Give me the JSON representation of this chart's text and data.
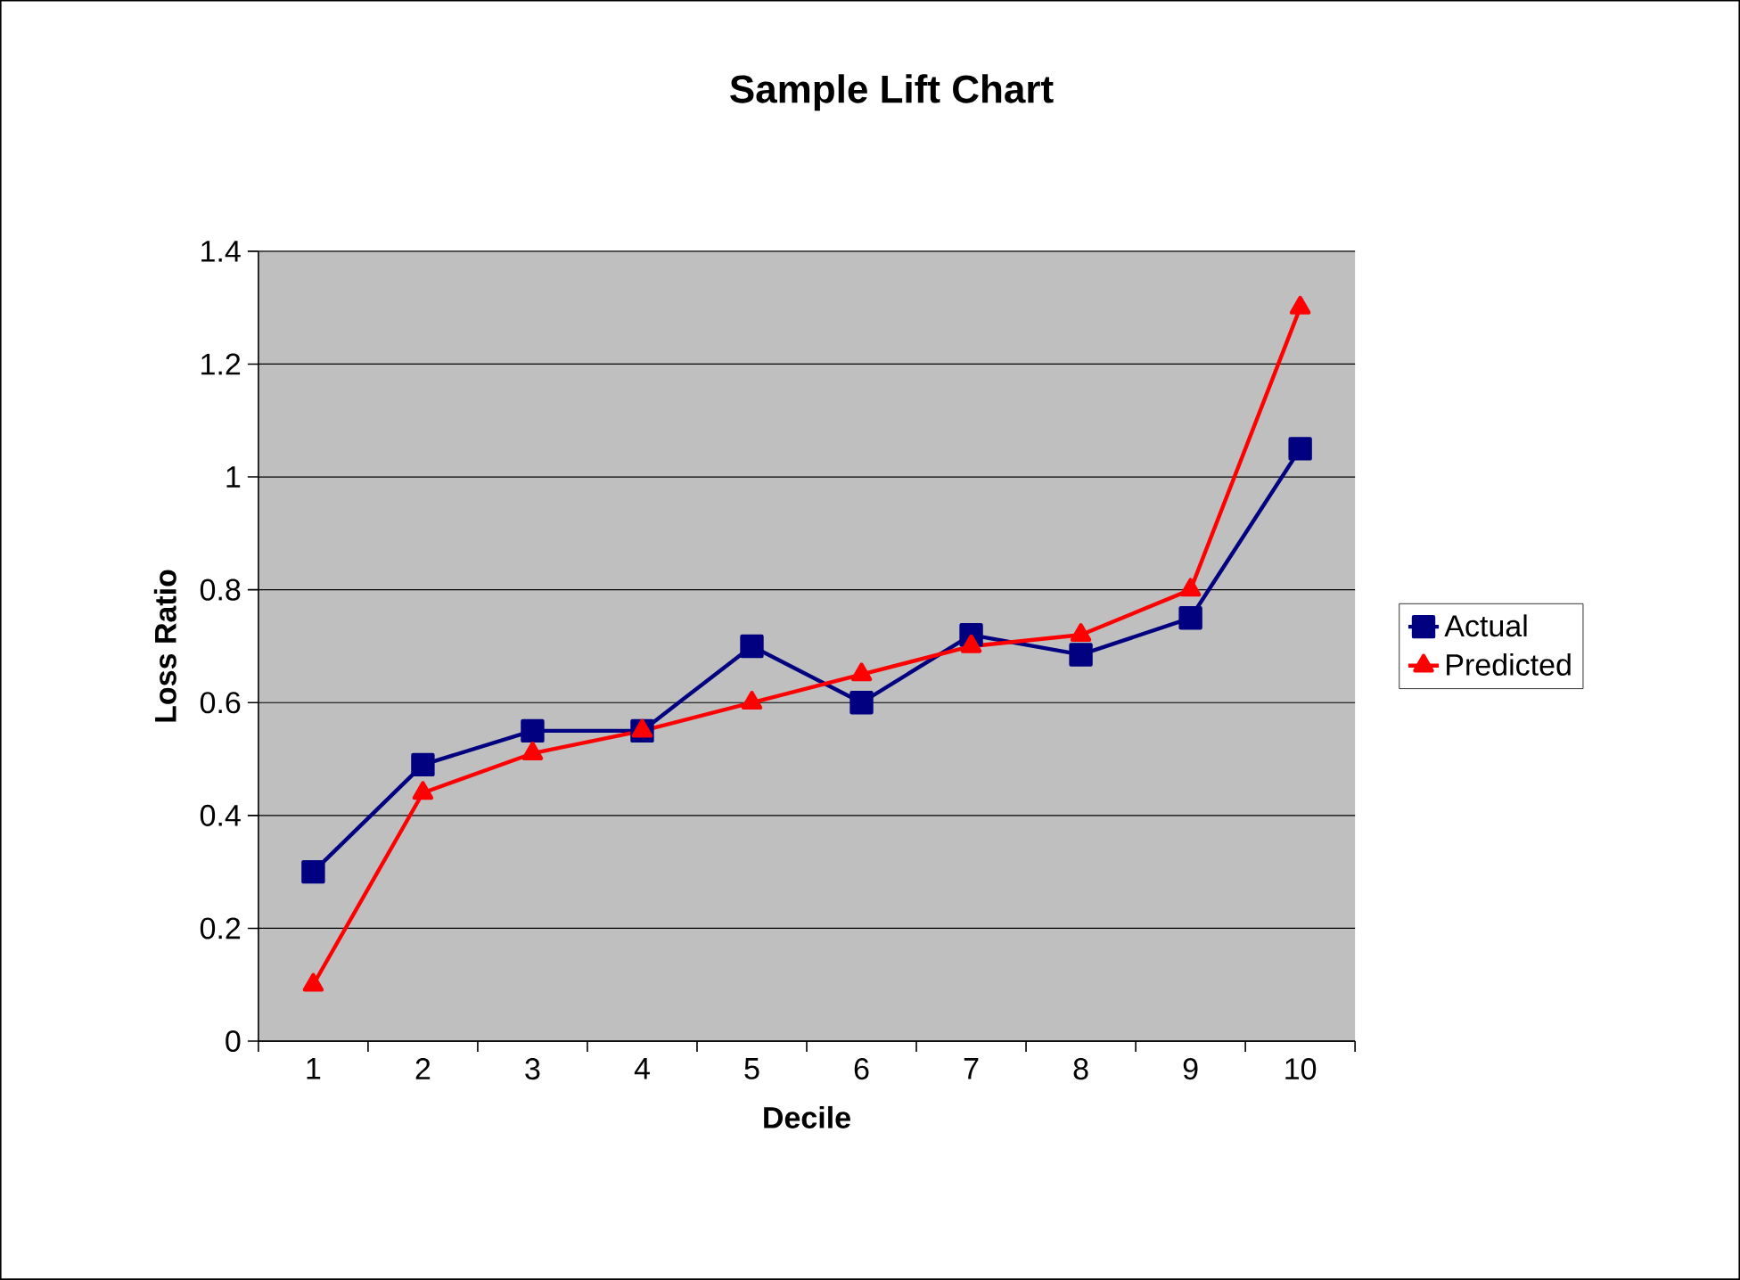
{
  "chart_data": {
    "type": "line",
    "title": "Sample Lift Chart",
    "xlabel": "Decile",
    "ylabel": "Loss Ratio",
    "categories": [
      "1",
      "2",
      "3",
      "4",
      "5",
      "6",
      "7",
      "8",
      "9",
      "10"
    ],
    "series": [
      {
        "name": "Actual",
        "color": "#000080",
        "marker": "square",
        "values": [
          0.3,
          0.49,
          0.55,
          0.55,
          0.7,
          0.6,
          0.72,
          0.685,
          0.75,
          1.05
        ]
      },
      {
        "name": "Predicted",
        "color": "#ff0000",
        "marker": "triangle",
        "values": [
          0.1,
          0.44,
          0.51,
          0.55,
          0.6,
          0.65,
          0.7,
          0.72,
          0.8,
          1.3
        ]
      }
    ],
    "ylim": [
      0,
      1.4
    ],
    "yticks": [
      0,
      0.2,
      0.4,
      0.6,
      0.8,
      1,
      1.2,
      1.4
    ],
    "grid": "y",
    "legend": "right",
    "line_style": "solid"
  }
}
